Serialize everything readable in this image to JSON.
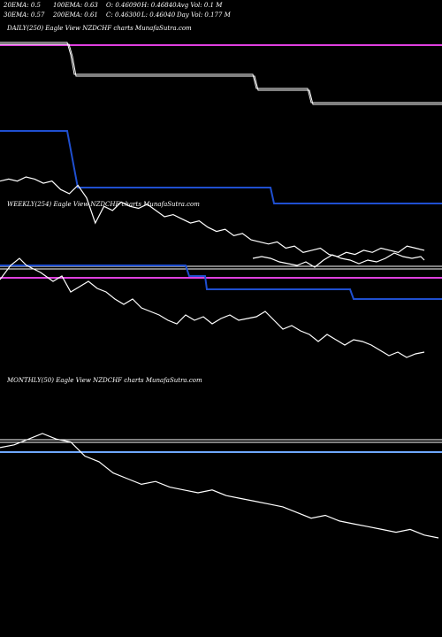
{
  "header": {
    "row1": [
      "20EMA: 0.5",
      "100EMA: 0.63",
      "O: 0.46090",
      "H: 0.46840",
      "Avg Vol: 0.1 M"
    ],
    "row2": [
      "30EMA: 0.57",
      "200EMA: 0.61",
      "C: 0.46300",
      "L: 0.46040",
      "Day Vol: 0.177 M"
    ]
  },
  "panels": {
    "daily_label": "DAILY(250) Eagle  View  NZDCHF charts MunafaSutra.com",
    "weekly_label": "WEEKLY(254) Eagle  View  NZDCHF charts MunafaSutra.com",
    "monthly_label": "MONTHLY(50) Eagle  View  NZDCHF charts MunafaSutra.com"
  },
  "colors": {
    "background": "#000000",
    "price": "#ffffff",
    "ema_blue": "#1f4fd0",
    "ema_magenta": "#e040e0",
    "ema_light": "#6fa8ff"
  },
  "chart_data": [
    {
      "type": "line",
      "name": "daily",
      "series": [
        {
          "values": [
            0.72,
            0.73,
            0.72,
            0.74,
            0.73,
            0.71,
            0.72,
            0.68,
            0.66,
            0.7,
            0.64,
            0.52,
            0.6,
            0.58,
            0.62,
            0.6,
            0.59,
            0.61,
            0.58,
            0.55,
            0.56,
            0.54,
            0.52,
            0.53,
            0.5,
            0.48,
            0.49,
            0.46,
            0.47,
            0.44,
            0.43,
            0.42,
            0.43,
            0.4,
            0.41,
            0.38,
            0.39,
            0.4,
            0.37,
            0.36,
            0.38,
            0.37,
            0.39,
            0.38,
            0.4,
            0.39,
            0.38,
            0.41,
            0.4,
            0.39
          ]
        },
        {
          "values": [
            0.62,
            0.62,
            0.62,
            0.62,
            0.62,
            0.62,
            0.62,
            0.62,
            0.62,
            0.62,
            0.62,
            0.62,
            0.61,
            0.61,
            0.61,
            0.61,
            0.61,
            0.61,
            0.61,
            0.61,
            0.61,
            0.61,
            0.6,
            0.6,
            0.6,
            0.6,
            0.6,
            0.6,
            0.6,
            0.6,
            0.6,
            0.6,
            0.6,
            0.6,
            0.6,
            0.6,
            0.6,
            0.6,
            0.6,
            0.6,
            0.6,
            0.6,
            0.6,
            0.6,
            0.6,
            0.6,
            0.6,
            0.6,
            0.6,
            0.6
          ]
        }
      ]
    },
    {
      "type": "line",
      "name": "weekly",
      "series": [
        {
          "values": [
            0.7,
            0.71,
            0.72,
            0.7,
            0.68,
            0.67,
            0.66,
            0.64,
            0.62,
            0.63,
            0.6,
            0.58,
            0.59,
            0.57,
            0.55,
            0.53,
            0.52,
            0.54,
            0.52,
            0.5,
            0.49,
            0.48,
            0.5,
            0.47,
            0.46,
            0.45,
            0.44,
            0.46,
            0.43,
            0.42,
            0.41,
            0.4,
            0.41,
            0.39,
            0.38,
            0.37,
            0.38,
            0.36,
            0.35,
            0.34,
            0.35,
            0.36,
            0.34,
            0.33,
            0.32,
            0.33,
            0.32,
            0.31,
            0.32,
            0.33
          ]
        }
      ]
    },
    {
      "type": "line",
      "name": "monthly",
      "series": [
        {
          "values": [
            0.75,
            0.76,
            0.78,
            0.8,
            0.78,
            0.77,
            0.72,
            0.7,
            0.66,
            0.64,
            0.62,
            0.63,
            0.61,
            0.6,
            0.59,
            0.6,
            0.58,
            0.57,
            0.56,
            0.55,
            0.54,
            0.52,
            0.5,
            0.51,
            0.49,
            0.48,
            0.47,
            0.46,
            0.45,
            0.46,
            0.44,
            0.43
          ]
        }
      ]
    }
  ]
}
